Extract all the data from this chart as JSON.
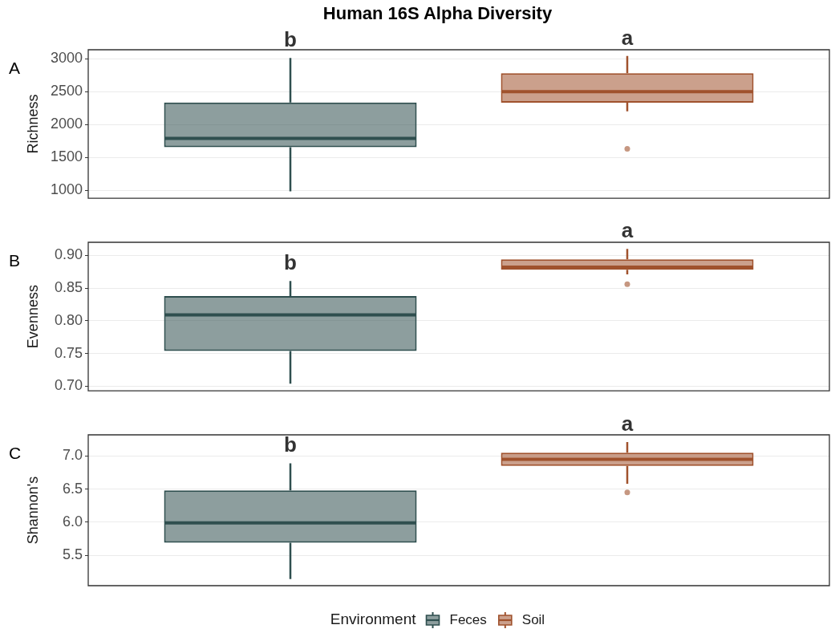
{
  "chart_data": [
    {
      "type": "box",
      "title": "Human 16S Alpha Diversity",
      "ylabel": "Richness",
      "categories": [
        null,
        null
      ],
      "tick_labels": "y",
      "grid": "y",
      "ylim": [
        880,
        3135
      ],
      "yticks": [
        1000,
        1500,
        2000,
        2500,
        3000
      ],
      "series": [
        {
          "color": "#2f4f4f",
          "boxes": [
            {
              "low": 985,
              "q1": 1655,
              "median": 1790,
              "q3": 2335,
              "high": 3010
            },
            null
          ]
        },
        {
          "color": "#a0522d",
          "boxes": [
            null,
            {
              "low": 2200,
              "q1": 2330,
              "median": 2500,
              "q3": 2780,
              "high": 3040,
              "outliers": [
                1630
              ]
            }
          ]
        }
      ],
      "annotations": [
        "A",
        "b",
        "a"
      ]
    },
    {
      "type": "box",
      "ylabel": "Evenness",
      "categories": [
        null,
        null
      ],
      "tick_labels": "y",
      "grid": "y",
      "ylim": [
        0.693,
        0.92
      ],
      "yticks": [
        {
          "value": 0.7,
          "label": "0.70"
        },
        {
          "value": 0.75,
          "label": "0.75"
        },
        {
          "value": 0.8,
          "label": "0.80"
        },
        {
          "value": 0.85,
          "label": "0.85"
        },
        {
          "value": 0.9,
          "label": "0.90"
        }
      ],
      "series": [
        {
          "color": "#2f4f4f",
          "boxes": [
            {
              "low": 0.704,
              "q1": 0.754,
              "median": 0.809,
              "q3": 0.838,
              "high": 0.861
            },
            null
          ]
        },
        {
          "color": "#a0522d",
          "boxes": [
            null,
            {
              "low": 0.871,
              "q1": 0.878,
              "median": 0.882,
              "q3": 0.894,
              "high": 0.91,
              "outliers": [
                0.856
              ]
            }
          ]
        }
      ],
      "annotations": [
        "B",
        "b",
        "a"
      ]
    },
    {
      "type": "box",
      "ylabel": "Shannon's",
      "categories": [
        null,
        null
      ],
      "tick_labels": "y",
      "grid": "y",
      "ylim": [
        5.04,
        7.32
      ],
      "yticks": [
        5.5,
        {
          "value": 6,
          "label": "6.0"
        },
        6.5,
        {
          "value": 7,
          "label": "7.0"
        }
      ],
      "series": [
        {
          "name": "Feces",
          "color": "#2f4f4f",
          "boxes": [
            {
              "low": 5.14,
              "q1": 5.69,
              "median": 5.99,
              "q3": 6.48,
              "high": 6.89
            },
            null
          ]
        },
        {
          "name": "Soil",
          "color": "#a0522d",
          "boxes": [
            null,
            {
              "low": 6.58,
              "q1": 6.85,
              "median": 6.95,
              "q3": 7.05,
              "high": 7.21,
              "outliers": [
                6.45
              ]
            }
          ]
        }
      ],
      "legend": "bottom",
      "legend_title": "Environment",
      "annotations": [
        "C",
        "b",
        "a"
      ]
    }
  ]
}
